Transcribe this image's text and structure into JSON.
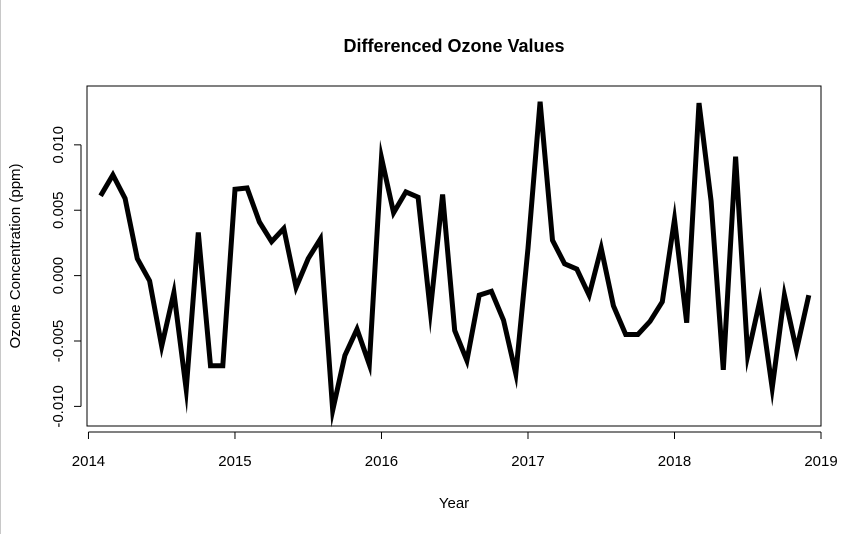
{
  "chart_data": {
    "type": "line",
    "title": "Differenced Ozone Values",
    "xlabel": "Year",
    "ylabel": "Ozone Concentration (ppm)",
    "xlim": [
      2013.99,
      2019.0
    ],
    "ylim": [
      -0.0115,
      0.0145
    ],
    "x_ticks": [
      2014,
      2015,
      2016,
      2017,
      2018,
      2019
    ],
    "x_tick_labels": [
      "2014",
      "2015",
      "2016",
      "2017",
      "2018",
      "2019"
    ],
    "y_ticks": [
      -0.01,
      -0.005,
      0.0,
      0.005,
      0.01
    ],
    "y_tick_labels": [
      "-0.010",
      "-0.005",
      "0.000",
      "0.005",
      "0.010"
    ],
    "grid": false,
    "series": [
      {
        "x": [
          2014.083,
          2014.167,
          2014.25,
          2014.333,
          2014.417,
          2014.5,
          2014.583,
          2014.667,
          2014.75,
          2014.833,
          2014.917,
          2015.0,
          2015.083,
          2015.167,
          2015.25,
          2015.333,
          2015.417,
          2015.5,
          2015.583,
          2015.667,
          2015.75,
          2015.833,
          2015.917,
          2016.0,
          2016.083,
          2016.167,
          2016.25,
          2016.333,
          2016.417,
          2016.5,
          2016.583,
          2016.667,
          2016.75,
          2016.833,
          2016.917,
          2017.0,
          2017.083,
          2017.167,
          2017.25,
          2017.333,
          2017.417,
          2017.5,
          2017.583,
          2017.667,
          2017.75,
          2017.833,
          2017.917,
          2018.0,
          2018.083,
          2018.167,
          2018.25,
          2018.333,
          2018.417,
          2018.5,
          2018.583,
          2018.667,
          2018.75,
          2018.833,
          2018.917
        ],
        "y": [
          0.0061,
          0.0077,
          0.0059,
          0.0013,
          -0.0004,
          -0.0054,
          -0.0013,
          -0.0087,
          0.0033,
          -0.0069,
          -0.0069,
          0.0066,
          0.0067,
          0.0041,
          0.0026,
          0.0036,
          -0.0009,
          0.0013,
          0.0028,
          -0.0103,
          -0.0061,
          -0.0041,
          -0.0068,
          0.009,
          0.0048,
          0.0064,
          0.006,
          -0.0027,
          0.0062,
          -0.0042,
          -0.0065,
          -0.0015,
          -0.0012,
          -0.0034,
          -0.0075,
          0.0021,
          0.0133,
          0.0027,
          0.0009,
          0.0005,
          -0.0015,
          0.0021,
          -0.0023,
          -0.0045,
          -0.0045,
          -0.0035,
          -0.002,
          0.0043,
          -0.0036,
          0.0132,
          0.0057,
          -0.0072,
          0.0091,
          -0.0061,
          -0.0019,
          -0.0086,
          -0.0015,
          -0.0057,
          -0.0015
        ]
      }
    ]
  }
}
